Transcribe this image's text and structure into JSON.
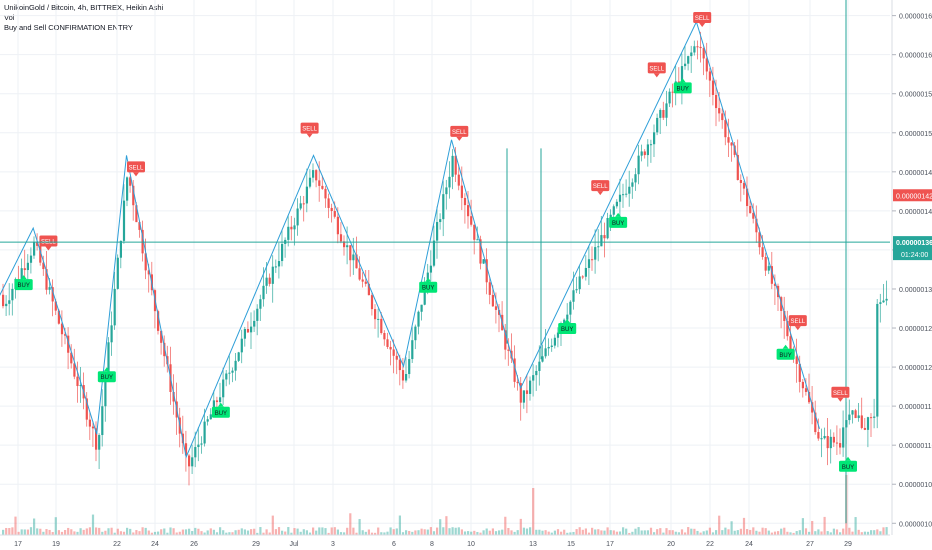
{
  "legend": {
    "title": "UnikoinGold / Bitcoin, 4h, BITTREX, Heikin Ashi",
    "vol": "Vol",
    "indicator": "Buy and Sell CONFIRMATION ENTRY"
  },
  "price_axis": {
    "current_price_label": "0.00000136",
    "countdown_label": "01:24:00",
    "red_level_label": "0.00000142"
  },
  "colors": {
    "up": "#26a69a",
    "down": "#ef5350",
    "zigzag": "#2f9fd8",
    "buy_marker": "#00e676",
    "sell_marker": "#ef5350",
    "price_line": "#26a69a"
  },
  "chart_data": {
    "type": "candlestick",
    "instrument": "UnikoinGold / Bitcoin",
    "timeframe": "4h",
    "exchange": "BITTREX",
    "style": "Heikin Ashi",
    "y_axis": {
      "range": [
        9.85e-07,
        1.67e-06
      ],
      "ticks": [
        "0.00000100",
        "0.00000105",
        "0.00000110",
        "0.00000115",
        "0.00000120",
        "0.00000125",
        "0.00000130",
        "0.00000135",
        "0.00000140",
        "0.00000145",
        "0.00000150",
        "0.00000155",
        "0.00000160",
        "0.00000165"
      ]
    },
    "x_axis": {
      "ticks": [
        "17",
        "19",
        "22",
        "24",
        "26",
        "29",
        "Jul",
        "3",
        "6",
        "8",
        "10",
        "13",
        "15",
        "17",
        "20",
        "22",
        "24",
        "27",
        "29"
      ]
    },
    "zigzag": [
      {
        "x": "16",
        "y": 1.29e-06
      },
      {
        "x": "17.8",
        "y": 1.378e-06
      },
      {
        "x": "21",
        "y": 1.114e-06
      },
      {
        "x": "22.5",
        "y": 1.471e-06
      },
      {
        "x": "25.6",
        "y": 1.085e-06
      },
      {
        "x": "Jul 2",
        "y": 1.471e-06
      },
      {
        "x": "Jul 6.5",
        "y": 1.201e-06
      },
      {
        "x": "Jul 9",
        "y": 1.491e-06
      },
      {
        "x": "Jul 12.4",
        "y": 1.173e-06
      },
      {
        "x": "Jul 21.3",
        "y": 1.642e-06
      },
      {
        "x": "Jul 27.5",
        "y": 1.121e-06
      }
    ],
    "signals": [
      {
        "type": "BUY",
        "label": "BUY",
        "date": "17.3"
      },
      {
        "type": "SELL",
        "label": "SELL",
        "date": "18.6"
      },
      {
        "type": "BUY",
        "label": "BUY",
        "date": "21.5"
      },
      {
        "type": "SELL",
        "label": "SELL",
        "date": "23"
      },
      {
        "type": "BUY",
        "label": "BUY",
        "date": "27.3"
      },
      {
        "type": "SELL",
        "label": "SELL",
        "date": "Jul 1.8"
      },
      {
        "type": "BUY",
        "label": "BUY",
        "date": "Jul 7.8"
      },
      {
        "type": "SELL",
        "label": "SELL",
        "date": "Jul 9.4"
      },
      {
        "type": "BUY",
        "label": "BUY",
        "date": "Jul 14.8"
      },
      {
        "type": "SELL",
        "label": "SELL",
        "date": "Jul 16.5"
      },
      {
        "type": "BUY",
        "label": "BUY",
        "date": "Jul 17.4"
      },
      {
        "type": "SELL",
        "label": "SELL",
        "date": "Jul 19.3"
      },
      {
        "type": "BUY",
        "label": "BUY",
        "date": "Jul 20.6"
      },
      {
        "type": "SELL",
        "label": "SELL",
        "date": "Jul 21.6"
      },
      {
        "type": "BUY",
        "label": "BUY",
        "date": "Jul 25.8"
      },
      {
        "type": "SELL",
        "label": "SELL",
        "date": "Jul 26.4"
      },
      {
        "type": "SELL",
        "label": "SELL",
        "date": "Jul 28.6"
      },
      {
        "type": "BUY",
        "label": "BUY",
        "date": "Jul 29"
      }
    ],
    "last_price": 1.36e-06
  }
}
